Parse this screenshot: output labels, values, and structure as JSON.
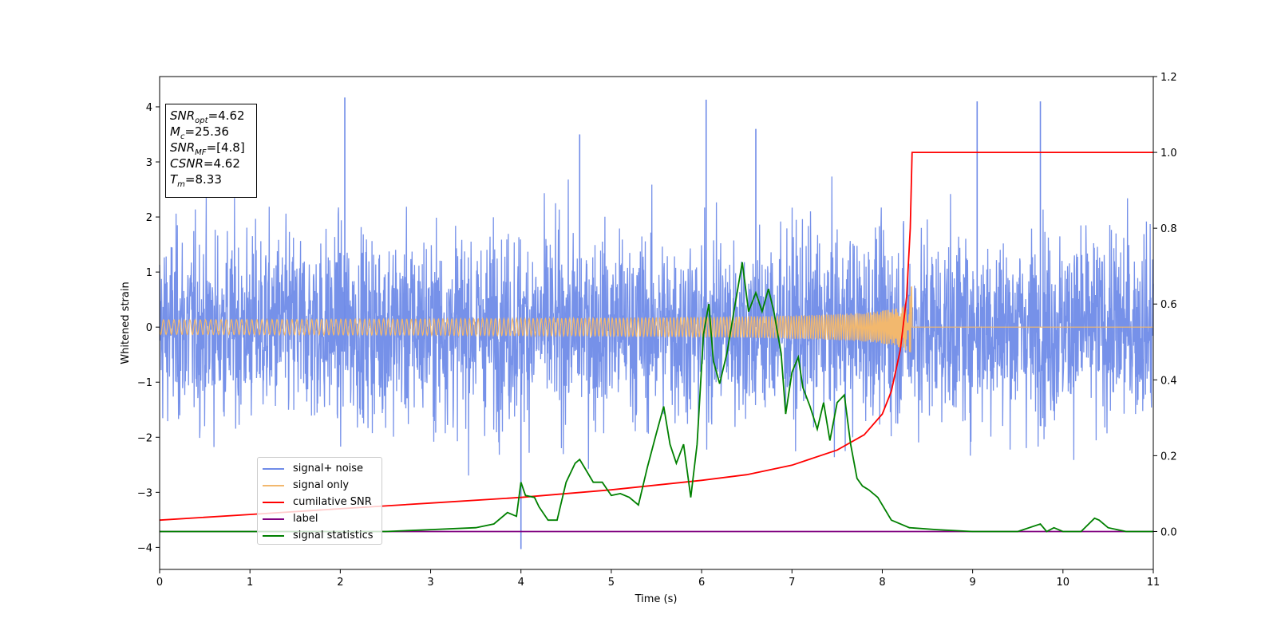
{
  "chart_data": {
    "type": "line",
    "xlabel": "Time (s)",
    "ylabel": "Whitened strain",
    "xlim": [
      0,
      11
    ],
    "ylim_left": [
      -4.4,
      4.55
    ],
    "ylim_right": [
      -0.1,
      1.2
    ],
    "x_ticks": [
      "0",
      "1",
      "2",
      "3",
      "4",
      "5",
      "6",
      "7",
      "8",
      "9",
      "10",
      "11"
    ],
    "y_ticks_left": [
      "−4",
      "−3",
      "−2",
      "−1",
      "0",
      "1",
      "2",
      "3",
      "4"
    ],
    "y_ticks_right": [
      "0.0",
      "0.2",
      "0.4",
      "0.6",
      "0.8",
      "1.0",
      "1.2"
    ],
    "info_box": {
      "snr_opt": {
        "base": "SNR",
        "sub": "opt",
        "value": "=4.62"
      },
      "mc": {
        "base": "M",
        "sub": "c",
        "value": "=25.36"
      },
      "snr_mf": {
        "base": "SNR",
        "sub": "MF",
        "value": "=[4.8]"
      },
      "csnr": {
        "base": "CSNR",
        "value": "=4.62"
      },
      "tm": {
        "base": "T",
        "sub": "m",
        "value": "=8.33"
      }
    },
    "legend_position": "lower-left",
    "series": [
      {
        "name": "signal+ noise",
        "color": "#6f8be8",
        "axis": "left",
        "description_values": "Gaussian-like noise amplitude mostly within ±2.5, spikes up to ~4.2 and down to ~-4.0",
        "noise_band": [
          -2.5,
          2.5
        ],
        "peaks": [
          [
            2.05,
            4.17
          ],
          [
            6.05,
            4.13
          ],
          [
            4.0,
            -4.03
          ],
          [
            9.05,
            4.1
          ],
          [
            9.75,
            4.1
          ],
          [
            6.6,
            3.6
          ],
          [
            4.65,
            3.5
          ]
        ]
      },
      {
        "name": "signal only",
        "color": "#f2b86e",
        "axis": "left",
        "chirp_end_time": 8.33,
        "chirp_peak_amplitude": 1.0
      },
      {
        "name": "cumilative SNR",
        "color": "#ff0000",
        "axis": "right",
        "x": [
          0,
          1,
          2,
          3,
          4,
          5,
          6,
          6.5,
          7,
          7.5,
          7.8,
          8.0,
          8.1,
          8.2,
          8.27,
          8.31,
          8.33,
          8.35,
          11
        ],
        "y": [
          0.03,
          0.045,
          0.06,
          0.075,
          0.09,
          0.11,
          0.135,
          0.15,
          0.175,
          0.215,
          0.255,
          0.31,
          0.37,
          0.48,
          0.62,
          0.8,
          1.0,
          1.0,
          1.0
        ]
      },
      {
        "name": "label",
        "color": "#800080",
        "axis": "right",
        "x": [
          0,
          11
        ],
        "y": [
          0.0,
          0.0
        ]
      },
      {
        "name": "signal statistics",
        "color": "#008000",
        "axis": "right",
        "x": [
          0,
          0.5,
          1,
          1.5,
          2,
          2.5,
          3,
          3.5,
          3.7,
          3.85,
          3.95,
          4.0,
          4.05,
          4.15,
          4.2,
          4.3,
          4.4,
          4.5,
          4.6,
          4.65,
          4.7,
          4.8,
          4.9,
          5.0,
          5.1,
          5.2,
          5.3,
          5.4,
          5.5,
          5.58,
          5.65,
          5.72,
          5.8,
          5.88,
          5.95,
          6.02,
          6.08,
          6.13,
          6.2,
          6.28,
          6.35,
          6.45,
          6.52,
          6.6,
          6.67,
          6.74,
          6.8,
          6.88,
          6.93,
          7.0,
          7.07,
          7.12,
          7.2,
          7.28,
          7.35,
          7.42,
          7.5,
          7.58,
          7.65,
          7.72,
          7.78,
          7.85,
          7.95,
          8.1,
          8.3,
          8.6,
          9.0,
          9.5,
          9.75,
          9.82,
          9.9,
          10.0,
          10.2,
          10.35,
          10.4,
          10.5,
          10.7,
          11
        ],
        "y": [
          0.0,
          0.0,
          0.0,
          0.0,
          0.0,
          0.0,
          0.005,
          0.01,
          0.02,
          0.05,
          0.04,
          0.13,
          0.095,
          0.09,
          0.065,
          0.03,
          0.03,
          0.13,
          0.18,
          0.19,
          0.17,
          0.13,
          0.13,
          0.095,
          0.1,
          0.09,
          0.07,
          0.17,
          0.26,
          0.33,
          0.23,
          0.18,
          0.23,
          0.09,
          0.23,
          0.52,
          0.6,
          0.45,
          0.39,
          0.47,
          0.57,
          0.71,
          0.58,
          0.63,
          0.58,
          0.64,
          0.58,
          0.47,
          0.31,
          0.42,
          0.46,
          0.38,
          0.33,
          0.27,
          0.34,
          0.24,
          0.34,
          0.36,
          0.23,
          0.14,
          0.12,
          0.11,
          0.09,
          0.03,
          0.01,
          0.005,
          0.0,
          0.0,
          0.02,
          0.0,
          0.01,
          0.0,
          0.0,
          0.035,
          0.03,
          0.01,
          0.0,
          0.0
        ]
      }
    ]
  }
}
